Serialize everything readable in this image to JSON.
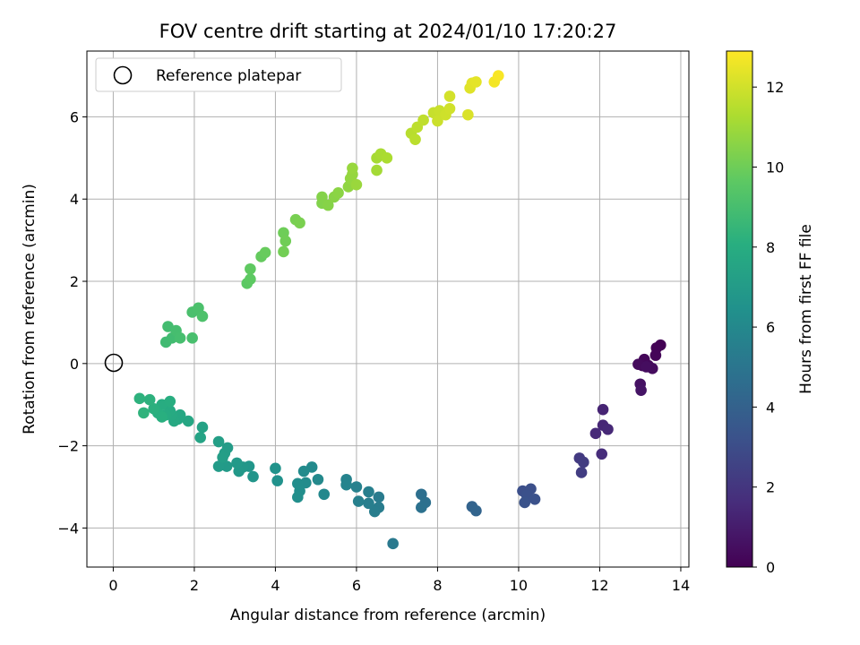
{
  "chart_data": {
    "type": "scatter",
    "title": "FOV centre drift starting at 2024/01/10 17:20:27",
    "xlabel": "Angular distance from reference (arcmin)",
    "ylabel": "Rotation from reference (arcmin)",
    "xlim": [
      -0.65,
      14.2
    ],
    "ylim": [
      -4.95,
      7.6
    ],
    "xticks": [
      0,
      2,
      4,
      6,
      8,
      10,
      12,
      14
    ],
    "yticks": [
      -4,
      -2,
      0,
      2,
      4,
      6
    ],
    "grid": true,
    "legend": {
      "placement": "top-left",
      "entries": [
        "Reference platepar"
      ]
    },
    "reference_point": {
      "x": 0,
      "y": 0
    },
    "colorbar": {
      "label": "Hours from first FF file",
      "range": [
        0,
        12.9
      ],
      "ticks": [
        0,
        2,
        4,
        6,
        8,
        10,
        12
      ],
      "colormap": "viridis"
    },
    "points": [
      {
        "x": 13.5,
        "y": 0.45,
        "c": 0.05
      },
      {
        "x": 13.4,
        "y": 0.38,
        "c": 0.1
      },
      {
        "x": 13.38,
        "y": 0.2,
        "c": 0.15
      },
      {
        "x": 13.1,
        "y": 0.1,
        "c": 0.2
      },
      {
        "x": 13.05,
        "y": -0.05,
        "c": 0.3
      },
      {
        "x": 13.2,
        "y": -0.05,
        "c": 0.25
      },
      {
        "x": 12.95,
        "y": -0.02,
        "c": 0.35
      },
      {
        "x": 13.3,
        "y": -0.12,
        "c": 0.4
      },
      {
        "x": 13.15,
        "y": -0.08,
        "c": 0.45
      },
      {
        "x": 13.0,
        "y": -0.5,
        "c": 0.6
      },
      {
        "x": 13.02,
        "y": -0.65,
        "c": 0.7
      },
      {
        "x": 12.08,
        "y": -1.12,
        "c": 1.3
      },
      {
        "x": 12.08,
        "y": -1.5,
        "c": 1.4
      },
      {
        "x": 12.2,
        "y": -1.6,
        "c": 1.45
      },
      {
        "x": 11.9,
        "y": -1.7,
        "c": 1.5
      },
      {
        "x": 12.05,
        "y": -2.2,
        "c": 1.6
      },
      {
        "x": 11.5,
        "y": -2.3,
        "c": 2.2
      },
      {
        "x": 11.6,
        "y": -2.4,
        "c": 2.25
      },
      {
        "x": 11.55,
        "y": -2.65,
        "c": 2.3
      },
      {
        "x": 10.1,
        "y": -3.1,
        "c": 3.1
      },
      {
        "x": 10.3,
        "y": -3.05,
        "c": 3.15
      },
      {
        "x": 10.2,
        "y": -3.2,
        "c": 3.2
      },
      {
        "x": 10.4,
        "y": -3.3,
        "c": 3.25
      },
      {
        "x": 10.15,
        "y": -3.38,
        "c": 3.3
      },
      {
        "x": 8.85,
        "y": -3.48,
        "c": 4.1
      },
      {
        "x": 8.95,
        "y": -3.58,
        "c": 4.15
      },
      {
        "x": 7.6,
        "y": -3.18,
        "c": 4.7
      },
      {
        "x": 7.7,
        "y": -3.38,
        "c": 4.75
      },
      {
        "x": 7.6,
        "y": -3.5,
        "c": 4.8
      },
      {
        "x": 6.9,
        "y": -4.38,
        "c": 5.2
      },
      {
        "x": 6.55,
        "y": -3.25,
        "c": 5.3
      },
      {
        "x": 6.55,
        "y": -3.5,
        "c": 5.35
      },
      {
        "x": 6.45,
        "y": -3.6,
        "c": 5.4
      },
      {
        "x": 6.3,
        "y": -3.4,
        "c": 5.45
      },
      {
        "x": 6.3,
        "y": -3.12,
        "c": 5.5
      },
      {
        "x": 6.05,
        "y": -3.35,
        "c": 5.55
      },
      {
        "x": 6.0,
        "y": -3.0,
        "c": 5.6
      },
      {
        "x": 5.75,
        "y": -2.82,
        "c": 5.7
      },
      {
        "x": 5.75,
        "y": -2.95,
        "c": 5.75
      },
      {
        "x": 5.2,
        "y": -3.18,
        "c": 6.0
      },
      {
        "x": 5.05,
        "y": -2.82,
        "c": 6.05
      },
      {
        "x": 4.9,
        "y": -2.52,
        "c": 6.1
      },
      {
        "x": 4.7,
        "y": -2.62,
        "c": 6.15
      },
      {
        "x": 4.75,
        "y": -2.9,
        "c": 6.2
      },
      {
        "x": 4.55,
        "y": -2.92,
        "c": 6.25
      },
      {
        "x": 4.6,
        "y": -3.1,
        "c": 6.3
      },
      {
        "x": 4.55,
        "y": -3.25,
        "c": 6.35
      },
      {
        "x": 4.05,
        "y": -2.85,
        "c": 6.5
      },
      {
        "x": 4.0,
        "y": -2.55,
        "c": 6.55
      },
      {
        "x": 3.45,
        "y": -2.75,
        "c": 6.7
      },
      {
        "x": 3.35,
        "y": -2.5,
        "c": 6.75
      },
      {
        "x": 3.2,
        "y": -2.52,
        "c": 6.8
      },
      {
        "x": 3.1,
        "y": -2.62,
        "c": 6.85
      },
      {
        "x": 3.05,
        "y": -2.42,
        "c": 6.9
      },
      {
        "x": 2.8,
        "y": -2.5,
        "c": 6.95
      },
      {
        "x": 2.6,
        "y": -2.5,
        "c": 7.0
      },
      {
        "x": 2.82,
        "y": -2.05,
        "c": 7.05
      },
      {
        "x": 2.75,
        "y": -2.18,
        "c": 7.1
      },
      {
        "x": 2.7,
        "y": -2.28,
        "c": 7.15
      },
      {
        "x": 2.6,
        "y": -1.9,
        "c": 7.2
      },
      {
        "x": 2.2,
        "y": -1.55,
        "c": 7.4
      },
      {
        "x": 2.15,
        "y": -1.8,
        "c": 7.45
      },
      {
        "x": 1.85,
        "y": -1.4,
        "c": 7.6
      },
      {
        "x": 1.6,
        "y": -1.35,
        "c": 7.65
      },
      {
        "x": 1.65,
        "y": -1.25,
        "c": 7.7
      },
      {
        "x": 1.5,
        "y": -1.4,
        "c": 7.75
      },
      {
        "x": 1.45,
        "y": -1.25,
        "c": 7.8
      },
      {
        "x": 1.4,
        "y": -1.15,
        "c": 7.85
      },
      {
        "x": 1.3,
        "y": -1.25,
        "c": 7.9
      },
      {
        "x": 1.2,
        "y": -1.0,
        "c": 7.95
      },
      {
        "x": 1.4,
        "y": -0.92,
        "c": 8.0
      },
      {
        "x": 1.1,
        "y": -1.2,
        "c": 8.05
      },
      {
        "x": 1.2,
        "y": -1.3,
        "c": 8.1
      },
      {
        "x": 1.0,
        "y": -1.1,
        "c": 8.15
      },
      {
        "x": 0.9,
        "y": -0.88,
        "c": 8.2
      },
      {
        "x": 0.65,
        "y": -0.85,
        "c": 8.25
      },
      {
        "x": 0.75,
        "y": -1.2,
        "c": 8.3
      },
      {
        "x": 1.3,
        "y": 0.52,
        "c": 8.8
      },
      {
        "x": 1.45,
        "y": 0.62,
        "c": 8.85
      },
      {
        "x": 1.35,
        "y": 0.9,
        "c": 8.9
      },
      {
        "x": 1.55,
        "y": 0.8,
        "c": 8.95
      },
      {
        "x": 1.65,
        "y": 0.62,
        "c": 9.0
      },
      {
        "x": 1.95,
        "y": 0.62,
        "c": 9.05
      },
      {
        "x": 1.95,
        "y": 1.25,
        "c": 9.1
      },
      {
        "x": 2.1,
        "y": 1.35,
        "c": 9.15
      },
      {
        "x": 2.2,
        "y": 1.15,
        "c": 9.2
      },
      {
        "x": 3.3,
        "y": 1.95,
        "c": 9.6
      },
      {
        "x": 3.38,
        "y": 2.05,
        "c": 9.65
      },
      {
        "x": 3.38,
        "y": 2.3,
        "c": 9.7
      },
      {
        "x": 3.65,
        "y": 2.6,
        "c": 9.8
      },
      {
        "x": 3.75,
        "y": 2.7,
        "c": 9.85
      },
      {
        "x": 4.2,
        "y": 3.18,
        "c": 10.0
      },
      {
        "x": 4.25,
        "y": 2.98,
        "c": 10.05
      },
      {
        "x": 4.2,
        "y": 2.72,
        "c": 10.1
      },
      {
        "x": 4.5,
        "y": 3.5,
        "c": 10.2
      },
      {
        "x": 4.6,
        "y": 3.42,
        "c": 10.25
      },
      {
        "x": 5.15,
        "y": 3.9,
        "c": 10.4
      },
      {
        "x": 5.15,
        "y": 4.05,
        "c": 10.45
      },
      {
        "x": 5.3,
        "y": 3.85,
        "c": 10.5
      },
      {
        "x": 5.45,
        "y": 4.05,
        "c": 10.55
      },
      {
        "x": 5.55,
        "y": 4.15,
        "c": 10.6
      },
      {
        "x": 5.8,
        "y": 4.3,
        "c": 10.7
      },
      {
        "x": 5.85,
        "y": 4.5,
        "c": 10.75
      },
      {
        "x": 5.9,
        "y": 4.6,
        "c": 10.8
      },
      {
        "x": 5.9,
        "y": 4.75,
        "c": 10.85
      },
      {
        "x": 6.0,
        "y": 4.35,
        "c": 10.9
      },
      {
        "x": 6.5,
        "y": 4.7,
        "c": 11.1
      },
      {
        "x": 6.5,
        "y": 5.0,
        "c": 11.15
      },
      {
        "x": 6.6,
        "y": 5.1,
        "c": 11.2
      },
      {
        "x": 6.75,
        "y": 5.0,
        "c": 11.25
      },
      {
        "x": 7.35,
        "y": 5.6,
        "c": 11.5
      },
      {
        "x": 7.45,
        "y": 5.45,
        "c": 11.55
      },
      {
        "x": 7.5,
        "y": 5.75,
        "c": 11.6
      },
      {
        "x": 7.65,
        "y": 5.92,
        "c": 11.65
      },
      {
        "x": 7.9,
        "y": 6.1,
        "c": 11.8
      },
      {
        "x": 8.05,
        "y": 6.15,
        "c": 11.85
      },
      {
        "x": 8.0,
        "y": 5.9,
        "c": 11.9
      },
      {
        "x": 8.2,
        "y": 6.05,
        "c": 11.95
      },
      {
        "x": 8.3,
        "y": 6.2,
        "c": 12.0
      },
      {
        "x": 8.3,
        "y": 6.5,
        "c": 12.05
      },
      {
        "x": 8.75,
        "y": 6.05,
        "c": 12.2
      },
      {
        "x": 8.8,
        "y": 6.7,
        "c": 12.3
      },
      {
        "x": 8.85,
        "y": 6.82,
        "c": 12.35
      },
      {
        "x": 8.95,
        "y": 6.85,
        "c": 12.4
      },
      {
        "x": 9.4,
        "y": 6.85,
        "c": 12.7
      },
      {
        "x": 9.5,
        "y": 7.0,
        "c": 12.8
      }
    ]
  }
}
